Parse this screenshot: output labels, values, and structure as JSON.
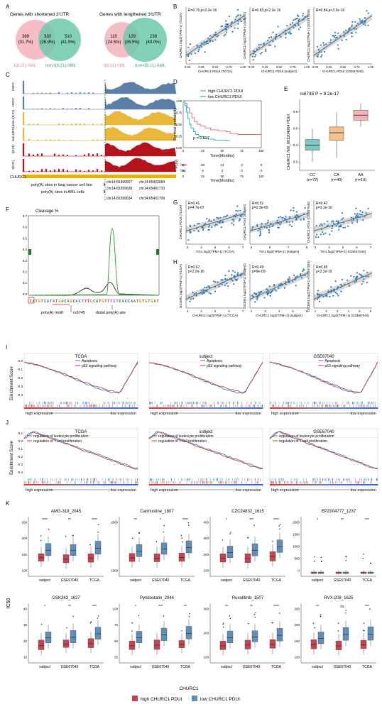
{
  "panel_letters": {
    "A": "A",
    "B": "B",
    "C": "C",
    "D": "D",
    "E": "E",
    "F": "F",
    "G": "G",
    "H": "H",
    "I": "I",
    "J": "J",
    "K": "K"
  },
  "panel_a": {
    "left_title": "Genes with shortened 3'UTR",
    "right_title": "Genes with lengthened 3'UTR",
    "left": {
      "a_only": "389",
      "a_only_pct": "(31.7%)",
      "both": "330",
      "both_pct": "(26.9%)",
      "b_only": "510",
      "b_only_pct": "(41.5%)"
    },
    "right": {
      "a_only": "119",
      "a_only_pct": "(24.5%)",
      "both": "129",
      "both_pct": "(26.5%)",
      "b_only": "238",
      "b_only_pct": "(49.0%)"
    },
    "label_a": "t(8;21) AML",
    "label_b": "non-t(8;21) AML",
    "color_a": "#f4b6bf",
    "color_b": "#6ec9ad"
  },
  "panel_b": {
    "plots": [
      {
        "stat": "R=0.76,p<2.2e-16",
        "ylabel": "CHURC1 log2(TPM+1) (TCGA)",
        "xlabel": "CHURC1 PDUI (TCGA)"
      },
      {
        "stat": "R=0.83,p<2.2e-16",
        "ylabel": "CHURC1 log2(TPM+1) (subject)",
        "xlabel": "CHURC1 PDUI (subject)"
      },
      {
        "stat": "R=0.84,p<2.2e-16",
        "ylabel": "CHURC1 log2(TPM+1) (GSE67040)",
        "xlabel": "CHURC1 PDUI (GSE67040)"
      }
    ],
    "xticks": [
      "0.00",
      "0.25",
      "0.50",
      "0.75",
      "1.00"
    ]
  },
  "panel_c": {
    "tracks": [
      "HSPC",
      "HSPC",
      "non-t(8;21)",
      "non-t(8;21)",
      "t(8;21)",
      "t(8;21)"
    ],
    "gene": "CHURC1",
    "row1_label": "poly(A) sites in lung cancer cell line",
    "row2_label": "poly(A) sites in AML cells",
    "coords": [
      "chr14:65399007",
      "chr14:65399038",
      "chr14:65399034",
      "chr14:65402084",
      "chr14:65401710",
      "chr14:65401709"
    ],
    "colors": [
      "#5b7fa6",
      "#5b7fa6",
      "#e9b83a",
      "#e9b83a",
      "#b5121b",
      "#b5121b"
    ]
  },
  "panel_d": {
    "legend": [
      "high CHURC1 PDUI",
      "low CHURC1 PDUI"
    ],
    "colors": [
      "#f0686b",
      "#19b3b8"
    ],
    "ylabel": "Survival probability",
    "xlabel": "Time(Months)",
    "pval": "p = 0.027",
    "xticks": [
      "0",
      "25",
      "50",
      "75",
      "100"
    ],
    "yticks": [
      "1.00",
      "0.75",
      "0.50",
      "0.25",
      "0.00"
    ],
    "risk_title": "PDUI",
    "risk_rows": [
      {
        "label": "high",
        "values": [
          "90",
          "30",
          "14",
          "3",
          "0"
        ]
      },
      {
        "label": "low",
        "values": [
          "35",
          "6",
          "2",
          "0",
          "0"
        ]
      }
    ],
    "risk_xlabel": "Time(Months)"
  },
  "panel_e": {
    "title": "rs6745 P = 9.2e-17",
    "ylabel": "CHURC1 NM_001204064 PDUI",
    "groups": [
      "CC",
      "CA",
      "AA"
    ],
    "counts": [
      "(n=72)",
      "(n=40)",
      "(n=10)"
    ],
    "yticks": [
      "0.2",
      "0.4",
      "0.6",
      "0.8"
    ],
    "colors": [
      "#7ec8c8",
      "#f7c08a",
      "#f5b5b8"
    ],
    "boxes": [
      {
        "min": 0.2,
        "q1": 0.34,
        "med": 0.4,
        "q3": 0.47,
        "max": 0.6
      },
      {
        "min": 0.25,
        "q1": 0.46,
        "med": 0.55,
        "q3": 0.62,
        "max": 0.8
      },
      {
        "min": 0.62,
        "q1": 0.7,
        "med": 0.76,
        "q3": 0.82,
        "max": 0.9
      }
    ]
  },
  "panel_f": {
    "title": "Cleavage %",
    "yticks": [
      "0.7",
      "0.6",
      "0.5",
      "0.4",
      "0.3",
      "0.2",
      "0.1",
      "0.0"
    ],
    "sequence": "TATGTCATATGACAGCACTTTGCATGTTTCTCACCAATGTGTGAT",
    "motif_label": "poly(A) motif",
    "snp_label": "rs6745",
    "distal_label": "distal poly(A) site"
  },
  "panel_g": {
    "plots": [
      {
        "stat1": "R=0.41",
        "stat2": "p=4.7e-07",
        "ylabel": "CHURC1 PDUI (TCGA)",
        "xlabel": "TIA1 log2(TPM+1) (TCGA)",
        "xticks": [
          "3",
          "4",
          "5",
          "6",
          "7"
        ]
      },
      {
        "stat1": "R=0.51",
        "stat2": "p=2.3e-09",
        "ylabel": "CHURC1 PDUI (subject)",
        "xlabel": "TIA1 log2(TPM+1) (subject)",
        "xticks": [
          "5",
          "6",
          "7",
          "8"
        ]
      },
      {
        "stat1": "R=0.42",
        "stat2": "p=3.1e-10",
        "ylabel": "CHURC1 PDUI (GSE67040)",
        "xlabel": "TIA1 log2(TPM+1) (GSE67040)",
        "xticks": [
          "3",
          "4",
          "5",
          "6",
          "7"
        ]
      }
    ]
  },
  "panel_h": {
    "plots": [
      {
        "stat1": "R=0.67",
        "stat2": "p<2.2e-16",
        "ylabel": "DICER1 log2(TPM+1) (TCGA)",
        "xlabel": "CHURC1 log2(TPM+1) (TCGA)",
        "xticks": [
          "3",
          "4",
          "5",
          "6",
          "7"
        ]
      },
      {
        "stat1": "R=0.49",
        "stat2": "p=9e-09",
        "ylabel": "DICER1 log2(TPM+1) (subject)",
        "xlabel": "CHURC1 log2(TPM+1) (subject)",
        "xticks": [
          "2",
          "3",
          "4",
          "5",
          "6"
        ]
      },
      {
        "stat1": "R=0.65",
        "stat2": "p<2.2e-16",
        "ylabel": "DICER1 log2(TPM+1) (GSE67040)",
        "xlabel": "CHURC1 log2(TPM+1) (GSE67040)",
        "xticks": [
          "1",
          "2",
          "3",
          "4",
          "5",
          "6"
        ]
      }
    ]
  },
  "panel_i": {
    "ylabel": "Enrichment Score",
    "titles": [
      "TCGA",
      "subject",
      "GSE67040"
    ],
    "legend": [
      "Apoptosis",
      "p53 signaling pathway"
    ],
    "high": "high expression",
    "low": "low expression",
    "yticks": [
      "0.0",
      "-0.1",
      "-0.2",
      "-0.3",
      "-0.4"
    ]
  },
  "panel_j": {
    "ylabel": "Enrichment Score",
    "titles": [
      "TCGA",
      "subject",
      "GSE67040"
    ],
    "legend": [
      "regulation of leukocyte proliferation",
      "regulation of T cell proliferation"
    ],
    "high": "high expression",
    "low": "low expression",
    "yticks": [
      "0.1",
      "0.0",
      "-0.1",
      "-0.2",
      "-0.3",
      "-0.4"
    ]
  },
  "panel_k": {
    "ylabel": "IC50",
    "groups": [
      "subject",
      "GSE67040",
      "TCGA"
    ],
    "legend_title": "CHURC1",
    "legend": [
      "high CHURC1 PDUI",
      "low CHURC1 PDUI"
    ],
    "colors": [
      "#c9424f",
      "#5f8fb8"
    ],
    "drugs": [
      {
        "title": "AMG-319_2045",
        "sig": [
          "****",
          "**",
          "****"
        ],
        "yticks": [
          "100",
          "150",
          "200",
          "250"
        ]
      },
      {
        "title": "Carmustine_1807",
        "sig": [
          "**",
          "*",
          "****"
        ],
        "yticks": [
          "1000",
          "2000"
        ]
      },
      {
        "title": "CZC24832_1615",
        "sig": [
          "*",
          "***",
          "****"
        ],
        "yticks": [
          "100",
          "200",
          "300",
          "400"
        ]
      },
      {
        "title": "EPZ004777_1237",
        "sig": [
          "*",
          "**",
          "***"
        ],
        "yticks": [
          "0",
          "500",
          "1000",
          "1500",
          "2000"
        ]
      },
      {
        "title": "GSK343_1627",
        "sig": [
          "*",
          "**",
          "***"
        ],
        "yticks": [
          "10",
          "20",
          "30",
          "40"
        ]
      },
      {
        "title": "Pyridostatin_2044",
        "sig": [
          "*",
          "***",
          "**"
        ],
        "yticks": [
          "25",
          "50",
          "75",
          "100"
        ]
      },
      {
        "title": "Ruxolitinib_1507",
        "sig": [
          "**",
          "**",
          "****"
        ],
        "yticks": [
          "100",
          "200",
          "300"
        ]
      },
      {
        "title": "RVX-208_1625",
        "sig": [
          "**",
          "ns",
          "***"
        ],
        "yticks": [
          "100",
          "150",
          "200",
          "250"
        ]
      }
    ]
  }
}
